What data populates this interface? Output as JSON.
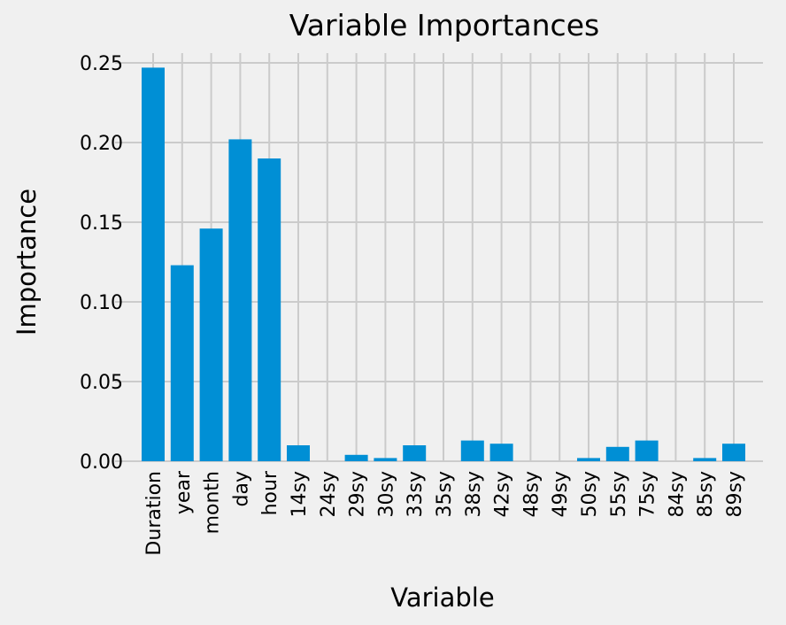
{
  "chart_data": {
    "type": "bar",
    "title": "Variable Importances",
    "xlabel": "Variable",
    "ylabel": "Importance",
    "categories": [
      "Duration",
      "year",
      "month",
      "day",
      "hour",
      "14sy",
      "24sy",
      "29sy",
      "30sy",
      "33sy",
      "35sy",
      "38sy",
      "42sy",
      "48sy",
      "49sy",
      "50sy",
      "55sy",
      "75sy",
      "84sy",
      "85sy",
      "89sy"
    ],
    "values": [
      0.247,
      0.123,
      0.146,
      0.202,
      0.19,
      0.01,
      0.0,
      0.004,
      0.002,
      0.01,
      0.0,
      0.013,
      0.011,
      0.0,
      0.0,
      0.002,
      0.009,
      0.013,
      0.0,
      0.002,
      0.011
    ],
    "yticks": [
      "0.00",
      "0.05",
      "0.10",
      "0.15",
      "0.20",
      "0.25"
    ],
    "ylim": [
      0,
      0.25
    ],
    "grid": true,
    "bar_color": "#008fd5",
    "background_color": "#f0f0f0",
    "grid_color": "#cbcbcb"
  }
}
